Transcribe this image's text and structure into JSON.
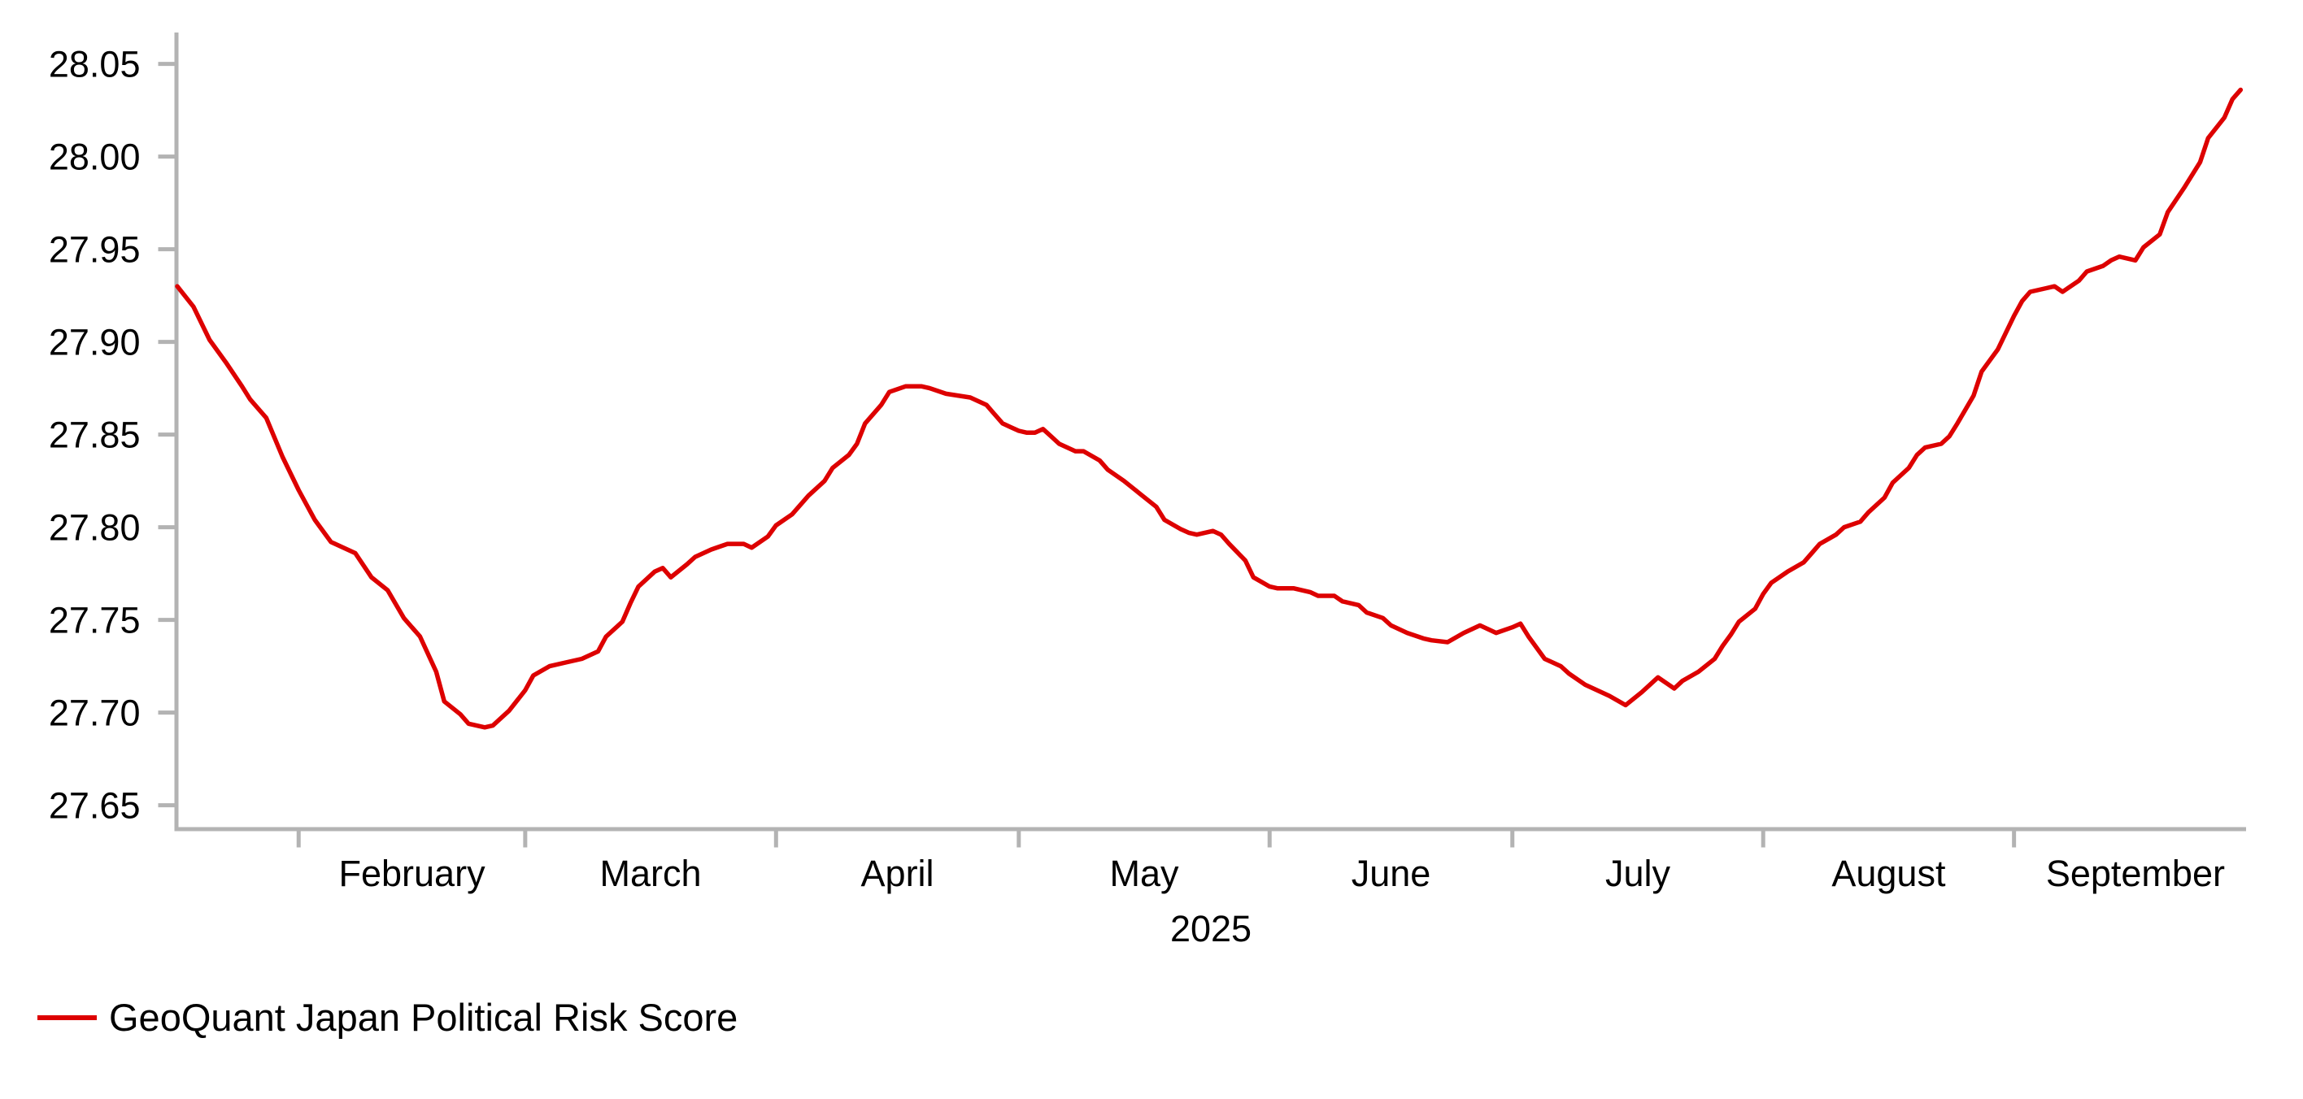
{
  "chart_data": {
    "type": "line",
    "title": "",
    "xlabel": "2025",
    "ylabel": "",
    "grid": false,
    "legend_position": "bottom-left",
    "x_axis": {
      "start_date": "2025-01-17",
      "end_date": "2025-09-29",
      "year_label": "2025",
      "months": [
        {
          "tick_date": "2025-02-01",
          "label": "February"
        },
        {
          "tick_date": "2025-03-01",
          "label": "March"
        },
        {
          "tick_date": "2025-04-01",
          "label": "April"
        },
        {
          "tick_date": "2025-05-01",
          "label": "May"
        },
        {
          "tick_date": "2025-06-01",
          "label": "June"
        },
        {
          "tick_date": "2025-07-01",
          "label": "July"
        },
        {
          "tick_date": "2025-08-01",
          "label": "August"
        },
        {
          "tick_date": "2025-09-01",
          "label": "September"
        }
      ],
      "label_midpoint_end": "2025-10-01"
    },
    "y_axis": {
      "min": 27.65,
      "max": 28.05,
      "step": 0.05,
      "tick_labels": [
        "28.05",
        "28.00",
        "27.95",
        "27.90",
        "27.85",
        "27.80",
        "27.75",
        "27.70",
        "27.65"
      ]
    },
    "series": [
      {
        "name": "GeoQuant Japan Political Risk Score",
        "color": "#dd0000",
        "points": [
          [
            "2025-01-17",
            27.93
          ],
          [
            "2025-01-19",
            27.919
          ],
          [
            "2025-01-21",
            27.901
          ],
          [
            "2025-01-23",
            27.889
          ],
          [
            "2025-01-25",
            27.876
          ],
          [
            "2025-01-26",
            27.869
          ],
          [
            "2025-01-28",
            27.859
          ],
          [
            "2025-01-30",
            27.838
          ],
          [
            "2025-02-01",
            27.82
          ],
          [
            "2025-02-03",
            27.804
          ],
          [
            "2025-02-05",
            27.792
          ],
          [
            "2025-02-08",
            27.786
          ],
          [
            "2025-02-10",
            27.773
          ],
          [
            "2025-02-12",
            27.766
          ],
          [
            "2025-02-14",
            27.751
          ],
          [
            "2025-02-16",
            27.741
          ],
          [
            "2025-02-18",
            27.722
          ],
          [
            "2025-02-19",
            27.706
          ],
          [
            "2025-02-21",
            27.699
          ],
          [
            "2025-02-22",
            27.694
          ],
          [
            "2025-02-24",
            27.692
          ],
          [
            "2025-02-25",
            27.693
          ],
          [
            "2025-02-27",
            27.701
          ],
          [
            "2025-03-01",
            27.712
          ],
          [
            "2025-03-02",
            27.72
          ],
          [
            "2025-03-04",
            27.725
          ],
          [
            "2025-03-06",
            27.727
          ],
          [
            "2025-03-08",
            27.729
          ],
          [
            "2025-03-10",
            27.733
          ],
          [
            "2025-03-11",
            27.741
          ],
          [
            "2025-03-13",
            27.749
          ],
          [
            "2025-03-14",
            27.759
          ],
          [
            "2025-03-15",
            27.768
          ],
          [
            "2025-03-17",
            27.776
          ],
          [
            "2025-03-18",
            27.778
          ],
          [
            "2025-03-19",
            27.773
          ],
          [
            "2025-03-21",
            27.78
          ],
          [
            "2025-03-22",
            27.784
          ],
          [
            "2025-03-24",
            27.788
          ],
          [
            "2025-03-26",
            27.791
          ],
          [
            "2025-03-28",
            27.791
          ],
          [
            "2025-03-29",
            27.789
          ],
          [
            "2025-03-31",
            27.795
          ],
          [
            "2025-04-01",
            27.801
          ],
          [
            "2025-04-03",
            27.807
          ],
          [
            "2025-04-05",
            27.817
          ],
          [
            "2025-04-07",
            27.825
          ],
          [
            "2025-04-08",
            27.832
          ],
          [
            "2025-04-10",
            27.839
          ],
          [
            "2025-04-11",
            27.845
          ],
          [
            "2025-04-12",
            27.856
          ],
          [
            "2025-04-14",
            27.866
          ],
          [
            "2025-04-15",
            27.873
          ],
          [
            "2025-04-17",
            27.876
          ],
          [
            "2025-04-19",
            27.876
          ],
          [
            "2025-04-20",
            27.875
          ],
          [
            "2025-04-22",
            27.872
          ],
          [
            "2025-04-25",
            27.87
          ],
          [
            "2025-04-27",
            27.866
          ],
          [
            "2025-04-28",
            27.861
          ],
          [
            "2025-04-29",
            27.856
          ],
          [
            "2025-04-30",
            27.854
          ],
          [
            "2025-05-01",
            27.852
          ],
          [
            "2025-05-02",
            27.851
          ],
          [
            "2025-05-03",
            27.851
          ],
          [
            "2025-05-04",
            27.853
          ],
          [
            "2025-05-05",
            27.849
          ],
          [
            "2025-05-06",
            27.845
          ],
          [
            "2025-05-08",
            27.841
          ],
          [
            "2025-05-09",
            27.841
          ],
          [
            "2025-05-11",
            27.836
          ],
          [
            "2025-05-12",
            27.831
          ],
          [
            "2025-05-14",
            27.825
          ],
          [
            "2025-05-16",
            27.818
          ],
          [
            "2025-05-18",
            27.811
          ],
          [
            "2025-05-19",
            27.804
          ],
          [
            "2025-05-21",
            27.799
          ],
          [
            "2025-05-22",
            27.797
          ],
          [
            "2025-05-23",
            27.796
          ],
          [
            "2025-05-25",
            27.798
          ],
          [
            "2025-05-26",
            27.796
          ],
          [
            "2025-05-27",
            27.791
          ],
          [
            "2025-05-29",
            27.782
          ],
          [
            "2025-05-30",
            27.773
          ],
          [
            "2025-06-01",
            27.768
          ],
          [
            "2025-06-02",
            27.767
          ],
          [
            "2025-06-04",
            27.767
          ],
          [
            "2025-06-06",
            27.765
          ],
          [
            "2025-06-07",
            27.763
          ],
          [
            "2025-06-09",
            27.763
          ],
          [
            "2025-06-10",
            27.76
          ],
          [
            "2025-06-12",
            27.758
          ],
          [
            "2025-06-13",
            27.754
          ],
          [
            "2025-06-15",
            27.751
          ],
          [
            "2025-06-16",
            27.747
          ],
          [
            "2025-06-18",
            27.743
          ],
          [
            "2025-06-20",
            27.74
          ],
          [
            "2025-06-21",
            27.739
          ],
          [
            "2025-06-23",
            27.738
          ],
          [
            "2025-06-25",
            27.743
          ],
          [
            "2025-06-27",
            27.747
          ],
          [
            "2025-06-28",
            27.745
          ],
          [
            "2025-06-29",
            27.743
          ],
          [
            "2025-07-01",
            27.746
          ],
          [
            "2025-07-02",
            27.748
          ],
          [
            "2025-07-03",
            27.741
          ],
          [
            "2025-07-05",
            27.729
          ],
          [
            "2025-07-07",
            27.725
          ],
          [
            "2025-07-08",
            27.721
          ],
          [
            "2025-07-10",
            27.715
          ],
          [
            "2025-07-13",
            27.709
          ],
          [
            "2025-07-15",
            27.704
          ],
          [
            "2025-07-17",
            27.711
          ],
          [
            "2025-07-19",
            27.719
          ],
          [
            "2025-07-20",
            27.716
          ],
          [
            "2025-07-21",
            27.713
          ],
          [
            "2025-07-22",
            27.717
          ],
          [
            "2025-07-24",
            27.722
          ],
          [
            "2025-07-26",
            27.729
          ],
          [
            "2025-07-27",
            27.736
          ],
          [
            "2025-07-28",
            27.742
          ],
          [
            "2025-07-29",
            27.749
          ],
          [
            "2025-07-31",
            27.756
          ],
          [
            "2025-08-01",
            27.764
          ],
          [
            "2025-08-02",
            27.77
          ],
          [
            "2025-08-04",
            27.776
          ],
          [
            "2025-08-06",
            27.781
          ],
          [
            "2025-08-07",
            27.786
          ],
          [
            "2025-08-08",
            27.791
          ],
          [
            "2025-08-10",
            27.796
          ],
          [
            "2025-08-11",
            27.8
          ],
          [
            "2025-08-13",
            27.803
          ],
          [
            "2025-08-14",
            27.808
          ],
          [
            "2025-08-16",
            27.816
          ],
          [
            "2025-08-17",
            27.824
          ],
          [
            "2025-08-19",
            27.832
          ],
          [
            "2025-08-20",
            27.839
          ],
          [
            "2025-08-21",
            27.843
          ],
          [
            "2025-08-23",
            27.845
          ],
          [
            "2025-08-24",
            27.849
          ],
          [
            "2025-08-25",
            27.856
          ],
          [
            "2025-08-27",
            27.871
          ],
          [
            "2025-08-28",
            27.884
          ],
          [
            "2025-08-30",
            27.896
          ],
          [
            "2025-08-31",
            27.905
          ],
          [
            "2025-09-01",
            27.914
          ],
          [
            "2025-09-02",
            27.922
          ],
          [
            "2025-09-03",
            27.927
          ],
          [
            "2025-09-05",
            27.929
          ],
          [
            "2025-09-06",
            27.93
          ],
          [
            "2025-09-07",
            27.927
          ],
          [
            "2025-09-09",
            27.933
          ],
          [
            "2025-09-10",
            27.938
          ],
          [
            "2025-09-12",
            27.941
          ],
          [
            "2025-09-13",
            27.944
          ],
          [
            "2025-09-14",
            27.946
          ],
          [
            "2025-09-16",
            27.944
          ],
          [
            "2025-09-17",
            27.951
          ],
          [
            "2025-09-19",
            27.958
          ],
          [
            "2025-09-20",
            27.97
          ],
          [
            "2025-09-22",
            27.983
          ],
          [
            "2025-09-24",
            27.997
          ],
          [
            "2025-09-25",
            28.01
          ],
          [
            "2025-09-27",
            28.021
          ],
          [
            "2025-09-28",
            28.031
          ],
          [
            "2025-09-29",
            28.036
          ]
        ]
      }
    ]
  },
  "legend": {
    "label": "GeoQuant Japan Political Risk Score"
  },
  "colors": {
    "background": "#ffffff",
    "axis": "#b3b3b3",
    "text": "#000000",
    "line": "#dd0000"
  }
}
